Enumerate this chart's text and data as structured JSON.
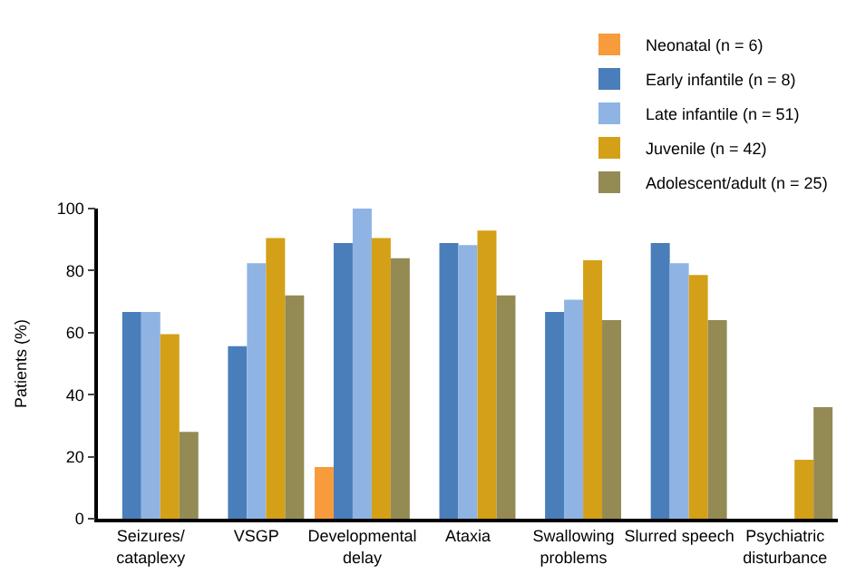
{
  "chart_data": {
    "type": "bar",
    "ylabel": "Patients (%)",
    "categories": [
      "Seizures/\ncataplexy",
      "VSGP",
      "Developmental\ndelay",
      "Ataxia",
      "Swallowing\nproblems",
      "Slurred speech",
      "Psychiatric\ndisturbance"
    ],
    "series": [
      {
        "name": "Neonatal (n = 6)",
        "color": "#f79b3c",
        "values": [
          null,
          null,
          16.7,
          null,
          null,
          null,
          null
        ]
      },
      {
        "name": "Early infantile (n = 8)",
        "color": "#4a7ebb",
        "values": [
          66.7,
          55.6,
          88.9,
          88.9,
          66.7,
          88.9,
          null
        ]
      },
      {
        "name": "Late infantile (n = 51)",
        "color": "#8fb4e3",
        "values": [
          66.7,
          82.4,
          100,
          88.2,
          70.6,
          82.4,
          null
        ]
      },
      {
        "name": "Juvenile (n = 42)",
        "color": "#d4a017",
        "values": [
          59.5,
          90.5,
          90.5,
          92.9,
          83.3,
          78.6,
          19
        ]
      },
      {
        "name": "Adolescent/adult (n = 25)",
        "color": "#948a54",
        "values": [
          28,
          72,
          84,
          72,
          64,
          64,
          36
        ]
      }
    ],
    "ylim": [
      0,
      100
    ],
    "yticks": [
      0,
      20,
      40,
      60,
      80,
      100
    ],
    "legend": "top right"
  }
}
